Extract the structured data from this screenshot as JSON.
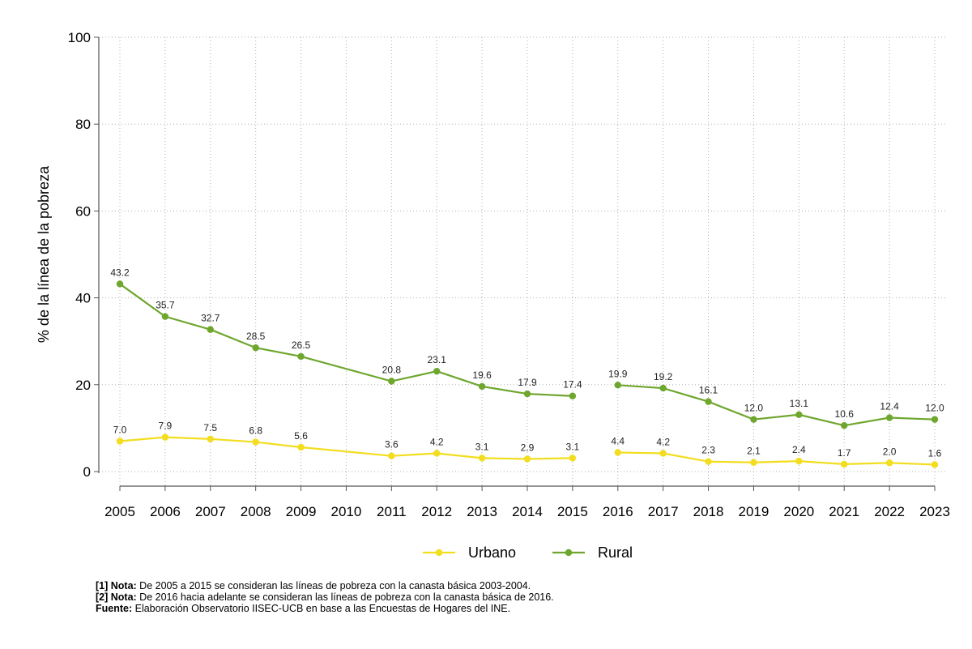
{
  "chart_data": {
    "type": "line",
    "title": "",
    "xlabel": "",
    "ylabel": "% de la línea de la pobreza",
    "ylim": [
      0,
      100
    ],
    "yticks": [
      "0",
      "20",
      "40",
      "60",
      "80",
      "100"
    ],
    "categories": [
      "2005",
      "2006",
      "2007",
      "2008",
      "2009",
      "2010",
      "2011",
      "2012",
      "2013",
      "2014",
      "2015",
      "2016",
      "2017",
      "2018",
      "2019",
      "2020",
      "2021",
      "2022",
      "2023"
    ],
    "grid": true,
    "legend_position": "bottom",
    "series": [
      {
        "name": "Urbano",
        "color": "#f2dd1e",
        "values": [
          7.0,
          7.9,
          7.5,
          6.8,
          5.6,
          null,
          3.6,
          4.2,
          3.1,
          2.9,
          3.1,
          4.4,
          4.2,
          2.3,
          2.1,
          2.4,
          1.7,
          2.0,
          1.6
        ],
        "labels": [
          "7.0",
          "7.9",
          "7.5",
          "6.8",
          "5.6",
          null,
          "3.6",
          "4.2",
          "3.1",
          "2.9",
          "3.1",
          "4.4",
          "4.2",
          "2.3",
          "2.1",
          "2.4",
          "1.7",
          "2.0",
          "1.6"
        ]
      },
      {
        "name": "Rural",
        "color": "#6ea62e",
        "values": [
          43.2,
          35.7,
          32.7,
          28.5,
          26.5,
          null,
          20.8,
          23.1,
          19.6,
          17.9,
          17.4,
          19.9,
          19.2,
          16.1,
          12.0,
          13.1,
          10.6,
          12.4,
          12.0
        ],
        "labels": [
          "43.2",
          "35.7",
          "32.7",
          "28.5",
          "26.5",
          null,
          "20.8",
          "23.1",
          "19.6",
          "17.9",
          "17.4",
          "19.9",
          "19.2",
          "16.1",
          "12.0",
          "13.1",
          "10.6",
          "12.4",
          "12.0"
        ]
      }
    ]
  },
  "notes": [
    {
      "label": "[1] Nota:",
      "text": " De 2005 a 2015 se consideran las líneas de pobreza con la canasta básica 2003-2004."
    },
    {
      "label": "[2] Nota:",
      "text": " De 2016 hacia adelante se consideran las líneas de pobreza con la canasta básica de 2016."
    },
    {
      "label": "Fuente:",
      "text": " Elaboración Observatorio IISEC-UCB en base a las Encuestas de Hogares del INE."
    }
  ],
  "colors": {
    "grid": "#b0b0b0",
    "axis": "#555555"
  }
}
